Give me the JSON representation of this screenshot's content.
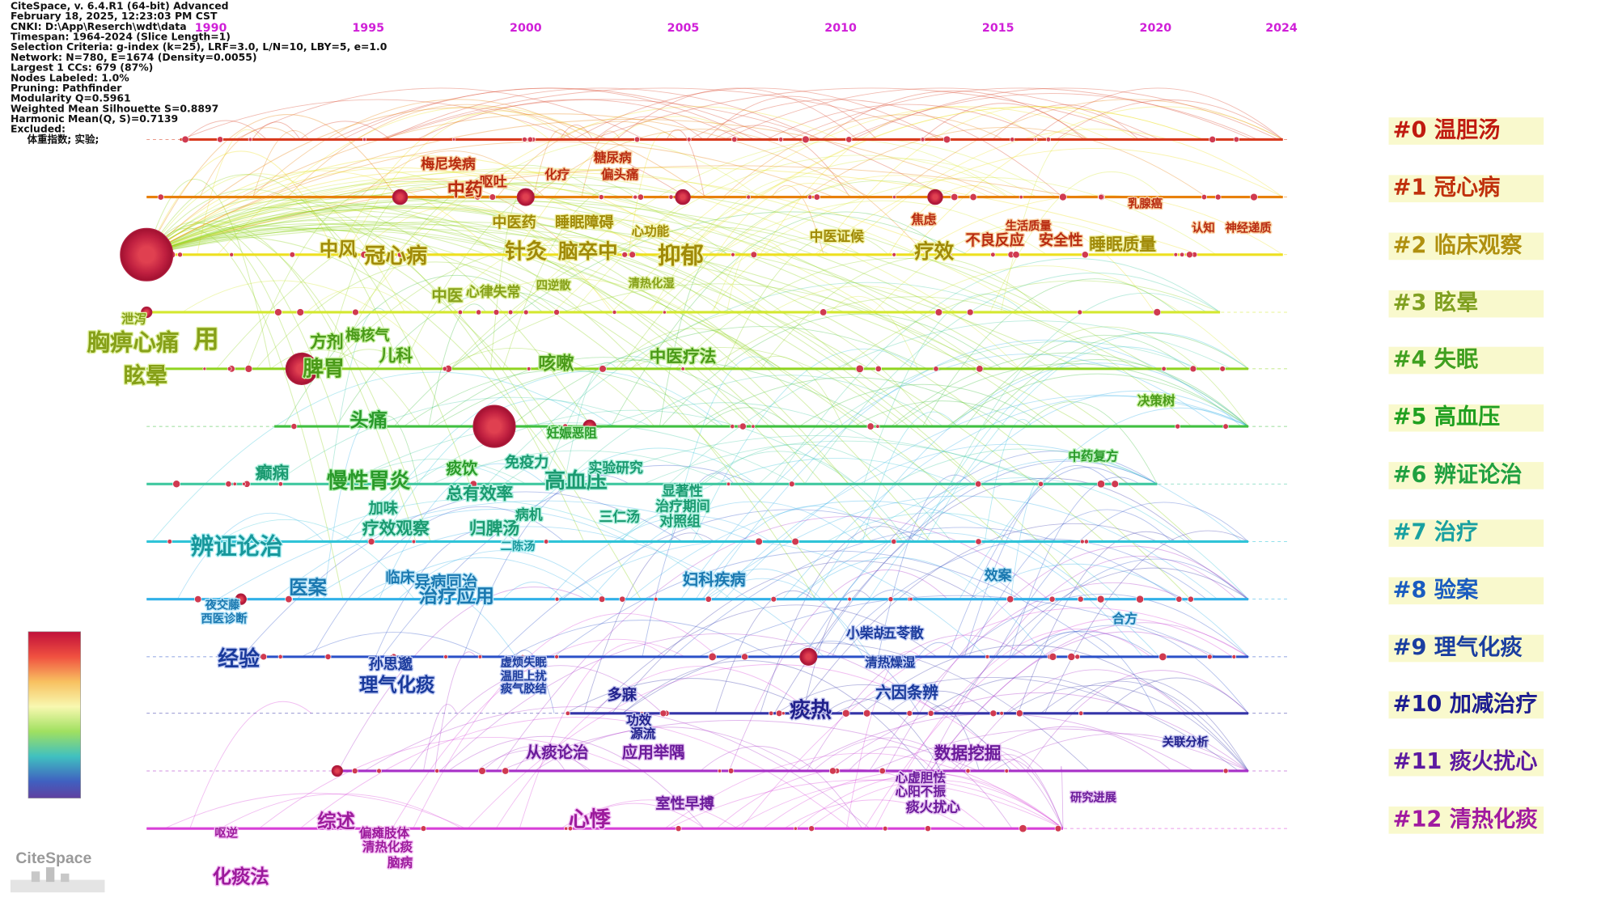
{
  "header": {
    "lines": [
      "CiteSpace, v. 6.4.R1 (64-bit) Advanced",
      "February 18, 2025, 12:23:03 PM CST",
      "CNKI: D:\\App\\Reserch\\wdt\\data",
      "Timespan: 1964-2024 (Slice Length=1)",
      "Selection Criteria: g-index (k=25), LRF=3.0, L/N=10, LBY=5, e=1.0",
      "Network: N=780, E=1674 (Density=0.0055)",
      "Largest 1 CCs: 679 (87%)",
      "Nodes Labeled: 1.0%",
      "Pruning: Pathfinder",
      "Modularity Q=0.5961",
      "Weighted Mean Silhouette S=0.8897",
      "Harmonic Mean(Q, S)=0.7139",
      "Excluded:",
      "体重指数; 实验;"
    ]
  },
  "years": [
    1990,
    1995,
    2000,
    2005,
    2010,
    2015,
    2020,
    2024
  ],
  "clusters": [
    "#0 温胆汤",
    "#1 冠心病",
    "#2 临床观察",
    "#3 眩晕",
    "#4 失眠",
    "#5 高血压",
    "#6 辨证论治",
    "#7 治疗",
    "#8 验案",
    "#9 理气化痰",
    "#10 加减治疗",
    "#11 痰火扰心",
    "#12 清热化痰"
  ],
  "keywords": [
    "梅尼埃病",
    "呕吐",
    "中药",
    "化疗",
    "糖尿病",
    "偏头痛",
    "焦虑",
    "生活质量",
    "不良反应",
    "安全性",
    "睡眠质量",
    "中医药",
    "睡眠障碍",
    "心功能",
    "中医证候",
    "疗效",
    "乳腺癌",
    "认知",
    "神经递质",
    "中风",
    "冠心病",
    "针灸",
    "脑卒中",
    "抑郁",
    "中医",
    "心律失常",
    "四逆散",
    "清热化湿",
    "泄泻",
    "胸痹心痛",
    "用",
    "眩晕",
    "方剂",
    "梅核气",
    "儿科",
    "脾胃",
    "咳嗽",
    "中医疗法",
    "决策树",
    "头痛",
    "妊娠恶阻",
    "中药复方",
    "癫痫",
    "慢性胃炎",
    "痰饮",
    "免疫力",
    "总有效率",
    "高血压",
    "实验研究",
    "显著性",
    "治疗期间",
    "对照组",
    "加味",
    "疗效观察",
    "归脾汤",
    "病机",
    "三仁汤",
    "辨证论治",
    "二陈汤",
    "医案",
    "临床",
    "异病同治",
    "治疗应用",
    "妇科疾病",
    "效案",
    "合方",
    "夜交藤",
    "西医诊断",
    "经验",
    "孙思邈",
    "理气化痰",
    "虚烦失眠",
    "温胆上扰",
    "痰气胶结",
    "小柴胡",
    "五苓散",
    "清热燥湿",
    "六因条辨",
    "多寐",
    "痰热",
    "功效",
    "源流",
    "关联分析",
    "从痰论治",
    "应用举隅",
    "数据挖掘",
    "心虚胆怯",
    "心阳不振",
    "痰火扰心",
    "研究进展",
    "室性早搏",
    "心悸",
    "综述",
    "偏瘫肢体",
    "清热化痰",
    "脑病",
    "呕逆",
    "化痰法"
  ],
  "logo": "CiteSpace"
}
